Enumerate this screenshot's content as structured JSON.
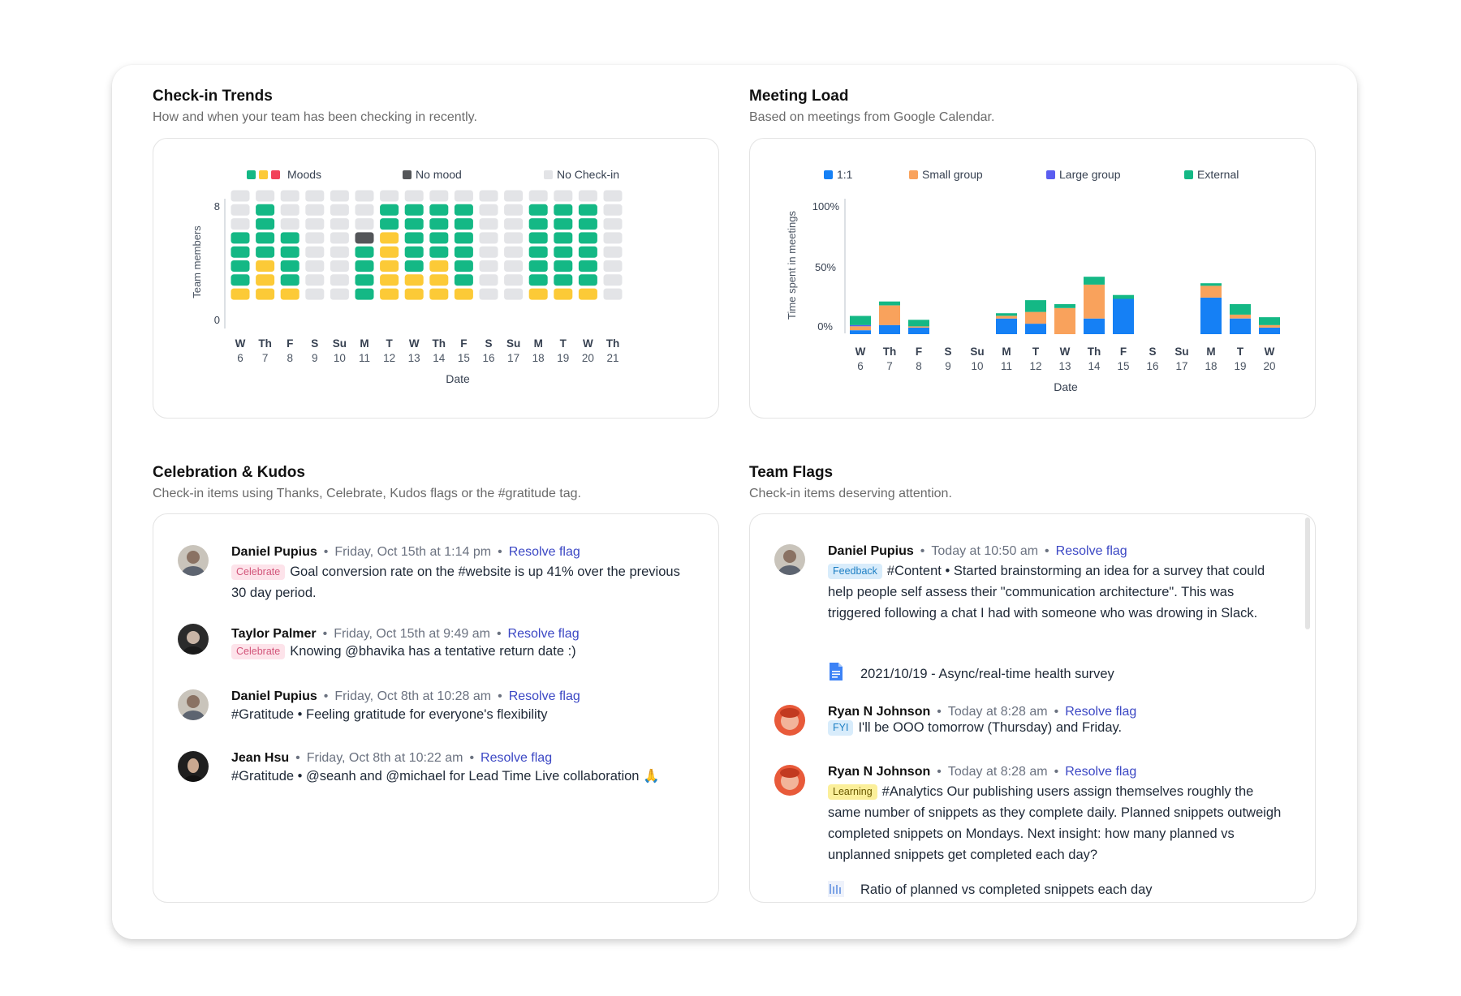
{
  "checkin": {
    "title": "Check-in Trends",
    "subtitle": "How and when your team has been checking in recently.",
    "legend": {
      "moods": "Moods",
      "no_mood": "No mood",
      "no_checkin": "No Check-in"
    },
    "y_label": "Team members",
    "y_ticks": [
      "8",
      "0"
    ],
    "x_label": "Date",
    "colors": {
      "green": "#14b885",
      "yellow": "#fcca37",
      "red": "#f2415a",
      "dark": "#545659",
      "gray": "#e3e4e7"
    }
  },
  "meeting": {
    "title": "Meeting Load",
    "subtitle": "Based on meetings from Google Calendar.",
    "legend": {
      "one": "1:1",
      "small": "Small group",
      "large": "Large group",
      "external": "External"
    },
    "y_label": "Time spent in meetings",
    "y_ticks": [
      "100%",
      "50%",
      "0%"
    ],
    "x_label": "Date",
    "colors": {
      "one": "#1580f5",
      "small": "#f9a25c",
      "large": "#5a5df0",
      "external": "#14b885"
    }
  },
  "chart_data": [
    {
      "type": "heatmap",
      "title": "Check-in Trends",
      "xlabel": "Date",
      "ylabel": "Team members",
      "ylim": [
        0,
        8
      ],
      "categories": [
        {
          "day": "W",
          "date": "6"
        },
        {
          "day": "Th",
          "date": "7"
        },
        {
          "day": "F",
          "date": "8"
        },
        {
          "day": "S",
          "date": "9"
        },
        {
          "day": "Su",
          "date": "10"
        },
        {
          "day": "M",
          "date": "11"
        },
        {
          "day": "T",
          "date": "12"
        },
        {
          "day": "W",
          "date": "13"
        },
        {
          "day": "Th",
          "date": "14"
        },
        {
          "day": "F",
          "date": "15"
        },
        {
          "day": "S",
          "date": "16"
        },
        {
          "day": "Su",
          "date": "17"
        },
        {
          "day": "M",
          "date": "18"
        },
        {
          "day": "T",
          "date": "19"
        },
        {
          "day": "W",
          "date": "20"
        },
        {
          "day": "Th",
          "date": "21"
        }
      ],
      "series": [
        {
          "name": "yellow",
          "values": [
            1,
            3,
            1,
            0,
            0,
            0,
            5,
            2,
            3,
            1,
            0,
            0,
            1,
            1,
            1,
            0
          ]
        },
        {
          "name": "green",
          "values": [
            4,
            4,
            4,
            0,
            0,
            4,
            2,
            5,
            4,
            6,
            0,
            0,
            6,
            6,
            6,
            0
          ]
        },
        {
          "name": "No mood",
          "values": [
            0,
            0,
            0,
            0,
            0,
            1,
            0,
            0,
            0,
            0,
            0,
            0,
            0,
            0,
            0,
            0
          ]
        }
      ]
    },
    {
      "type": "bar",
      "title": "Meeting Load",
      "xlabel": "Date",
      "ylabel": "Time spent in meetings",
      "ylim": [
        0,
        100
      ],
      "categories": [
        {
          "day": "W",
          "date": "6"
        },
        {
          "day": "Th",
          "date": "7"
        },
        {
          "day": "F",
          "date": "8"
        },
        {
          "day": "S",
          "date": "9"
        },
        {
          "day": "Su",
          "date": "10"
        },
        {
          "day": "M",
          "date": "11"
        },
        {
          "day": "T",
          "date": "12"
        },
        {
          "day": "W",
          "date": "13"
        },
        {
          "day": "Th",
          "date": "14"
        },
        {
          "day": "F",
          "date": "15"
        },
        {
          "day": "S",
          "date": "16"
        },
        {
          "day": "Su",
          "date": "17"
        },
        {
          "day": "M",
          "date": "18"
        },
        {
          "day": "T",
          "date": "19"
        },
        {
          "day": "W",
          "date": "20"
        }
      ],
      "series": [
        {
          "name": "1:1",
          "values": [
            3,
            7,
            5,
            0,
            0,
            12,
            8,
            0,
            12,
            27,
            0,
            0,
            28,
            12,
            5
          ]
        },
        {
          "name": "Small group",
          "values": [
            3,
            15,
            1,
            0,
            0,
            2,
            9,
            20,
            26,
            0,
            0,
            0,
            9,
            3,
            2
          ]
        },
        {
          "name": "Large group",
          "values": [
            1,
            0,
            0,
            0,
            0,
            0,
            0,
            0,
            0,
            0,
            0,
            0,
            0,
            0,
            0
          ]
        },
        {
          "name": "External",
          "values": [
            7,
            3,
            5,
            0,
            0,
            2,
            9,
            3,
            6,
            3,
            0,
            0,
            2,
            8,
            6
          ]
        }
      ]
    }
  ],
  "kudos": {
    "title": "Celebration & Kudos",
    "subtitle": "Check-in items using Thanks, Celebrate, Kudos flags or the #gratitude tag.",
    "items": [
      {
        "name": "Daniel Pupius",
        "time": "Friday, Oct 15th at 1:14 pm",
        "action": "Resolve flag",
        "tag": "Celebrate",
        "text": "Goal conversion rate on the #website is up 41% over the previous 30 day period."
      },
      {
        "name": "Taylor Palmer",
        "time": "Friday, Oct 15th at 9:49 am",
        "action": "Resolve flag",
        "tag": "Celebrate",
        "text": "Knowing @bhavika has a tentative return date :)"
      },
      {
        "name": "Daniel Pupius",
        "time": "Friday, Oct 8th at 10:28 am",
        "action": "Resolve flag",
        "text": "#Gratitude • Feeling gratitude for everyone's flexibility"
      },
      {
        "name": "Jean Hsu",
        "time": "Friday, Oct 8th at 10:22 am",
        "action": "Resolve flag",
        "text": "#Gratitude • @seanh and @michael for Lead Time Live collaboration 🙏"
      }
    ]
  },
  "flags": {
    "title": "Team Flags",
    "subtitle": "Check-in items deserving attention.",
    "items": [
      {
        "name": "Daniel Pupius",
        "time": "Today at 10:50 am",
        "action": "Resolve flag",
        "tag": "Feedback",
        "text": "#Content • Started brainstorming an idea for a survey that could help people self assess their \"communication architecture\". This was triggered following a chat I had with someone who was drowing in Slack.",
        "attachment": "2021/10/19 - Async/real-time health survey"
      },
      {
        "name": "Ryan N Johnson",
        "time": "Today at 8:28 am",
        "action": "Resolve flag",
        "tag": "FYI",
        "text": "I'll be OOO tomorrow (Thursday) and Friday."
      },
      {
        "name": "Ryan N Johnson",
        "time": "Today at 8:28 am",
        "action": "Resolve flag",
        "tag": "Learning",
        "text": "#Analytics Our publishing users assign themselves roughly the same number of snippets as they complete daily. Planned snippets outweigh completed snippets on Mondays. Next insight: how many planned vs unplanned snippets get completed each day?",
        "attachment": "Ratio of planned vs completed snippets each day"
      }
    ]
  }
}
